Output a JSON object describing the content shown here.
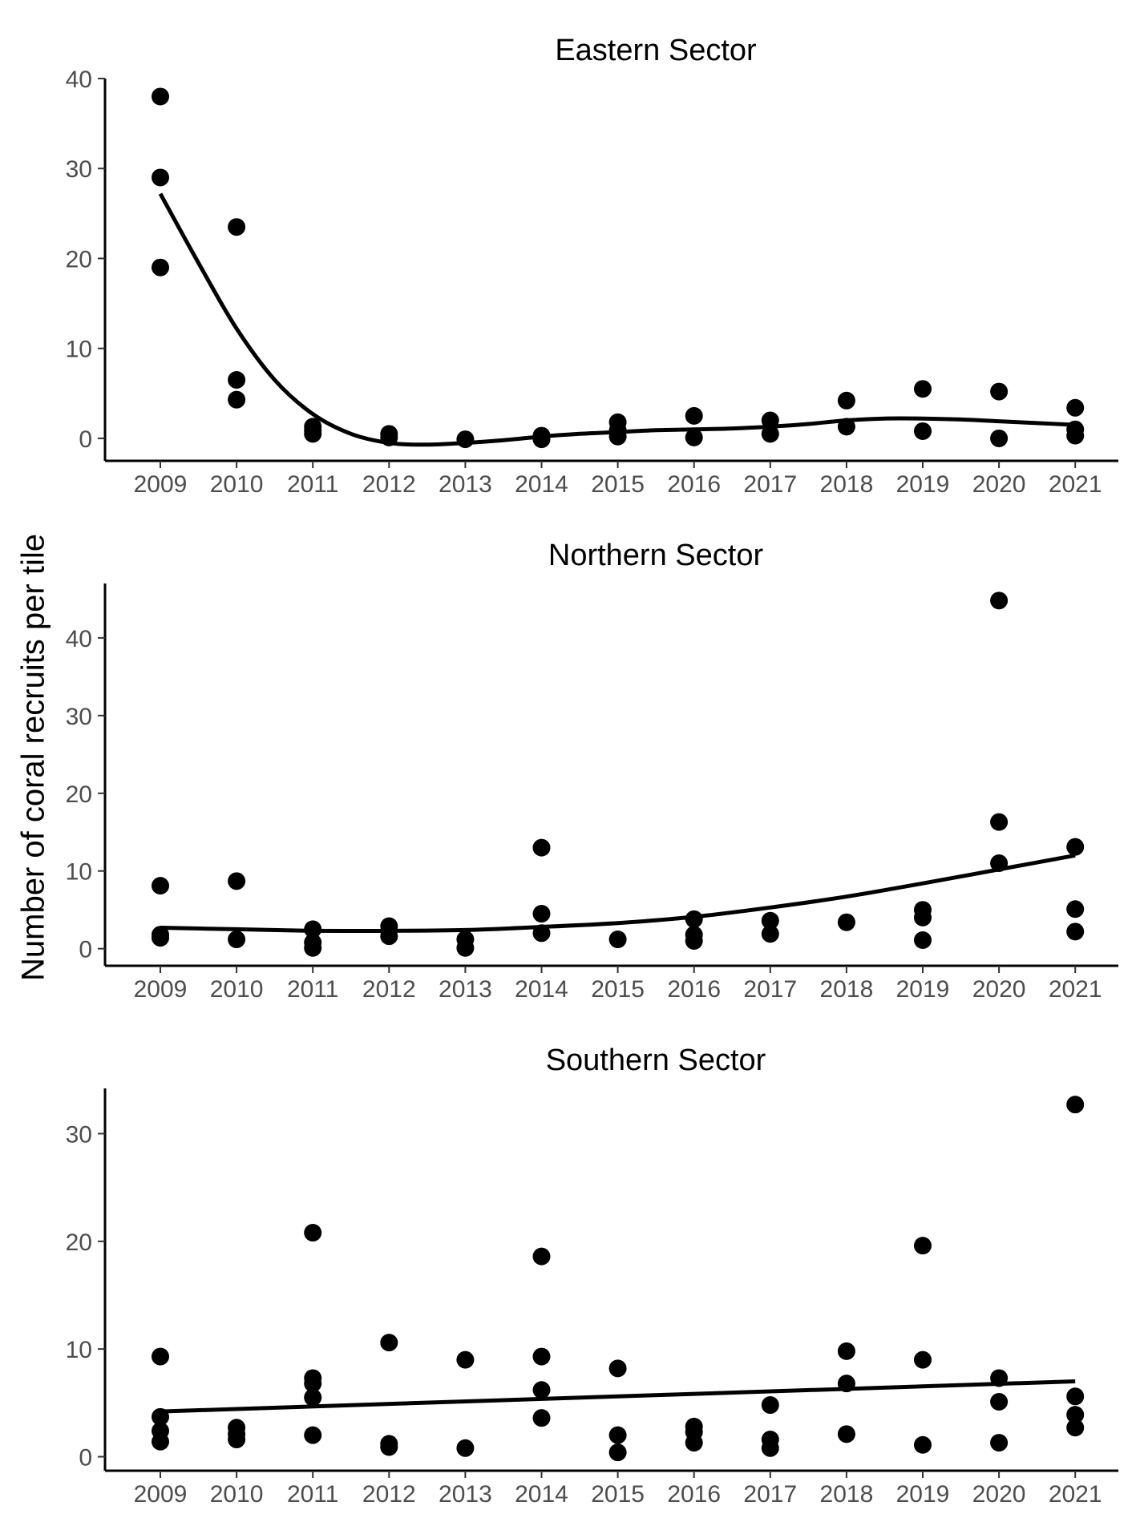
{
  "figure": {
    "ylabel": "Number of coral recruits per tile"
  },
  "chart_data": [
    {
      "type": "scatter",
      "title": "Eastern Sector",
      "xlabel": "",
      "ylabel": "Number of coral recruits per tile",
      "x_ticks": [
        2009,
        2010,
        2011,
        2012,
        2013,
        2014,
        2015,
        2016,
        2017,
        2018,
        2019,
        2020,
        2021
      ],
      "y_ticks": [
        0,
        10,
        20,
        30,
        40
      ],
      "ylim": [
        -2.5,
        40
      ],
      "grid": false,
      "points": [
        [
          2009,
          38
        ],
        [
          2009,
          29
        ],
        [
          2009,
          19
        ],
        [
          2010,
          23.5
        ],
        [
          2010,
          6.5
        ],
        [
          2010,
          4.3
        ],
        [
          2011,
          1.3
        ],
        [
          2011,
          0.5
        ],
        [
          2011,
          0.9
        ],
        [
          2012,
          0.5
        ],
        [
          2012,
          0.1
        ],
        [
          2013,
          -0.1
        ],
        [
          2014,
          0.3
        ],
        [
          2014,
          -0.1
        ],
        [
          2015,
          1.8
        ],
        [
          2015,
          0.9
        ],
        [
          2015,
          0.2
        ],
        [
          2016,
          2.5
        ],
        [
          2016,
          0.1
        ],
        [
          2017,
          2.0
        ],
        [
          2017,
          0.5
        ],
        [
          2018,
          4.2
        ],
        [
          2018,
          1.3
        ],
        [
          2019,
          5.5
        ],
        [
          2019,
          0.8
        ],
        [
          2020,
          5.2
        ],
        [
          2020,
          0.0
        ],
        [
          2021,
          3.4
        ],
        [
          2021,
          1.0
        ],
        [
          2021,
          0.3
        ]
      ],
      "trend": [
        [
          2009,
          27.2
        ],
        [
          2009.5,
          19.5
        ],
        [
          2010,
          12.2
        ],
        [
          2010.5,
          6.5
        ],
        [
          2011,
          2.7
        ],
        [
          2011.5,
          0.5
        ],
        [
          2012,
          -0.5
        ],
        [
          2012.5,
          -0.7
        ],
        [
          2013,
          -0.5
        ],
        [
          2013.5,
          -0.2
        ],
        [
          2014,
          0.2
        ],
        [
          2014.5,
          0.5
        ],
        [
          2015,
          0.7
        ],
        [
          2015.5,
          0.9
        ],
        [
          2016,
          1.0
        ],
        [
          2016.5,
          1.1
        ],
        [
          2017,
          1.3
        ],
        [
          2017.5,
          1.6
        ],
        [
          2018,
          2.0
        ],
        [
          2018.5,
          2.2
        ],
        [
          2019,
          2.2
        ],
        [
          2019.5,
          2.1
        ],
        [
          2020,
          1.9
        ],
        [
          2020.5,
          1.7
        ],
        [
          2021,
          1.5
        ]
      ]
    },
    {
      "type": "scatter",
      "title": "Northern Sector",
      "xlabel": "",
      "ylabel": "Number of coral recruits per tile",
      "x_ticks": [
        2009,
        2010,
        2011,
        2012,
        2013,
        2014,
        2015,
        2016,
        2017,
        2018,
        2019,
        2020,
        2021
      ],
      "y_ticks": [
        0,
        10,
        20,
        30,
        40
      ],
      "ylim": [
        -2.2,
        47
      ],
      "grid": false,
      "points": [
        [
          2009,
          8.1
        ],
        [
          2009,
          1.8
        ],
        [
          2009,
          1.4
        ],
        [
          2010,
          8.7
        ],
        [
          2010,
          1.2
        ],
        [
          2011,
          2.5
        ],
        [
          2011,
          0.8
        ],
        [
          2011,
          0.1
        ],
        [
          2012,
          2.9
        ],
        [
          2012,
          1.6
        ],
        [
          2013,
          1.2
        ],
        [
          2013,
          0.1
        ],
        [
          2014,
          13.0
        ],
        [
          2014,
          4.5
        ],
        [
          2014,
          2.0
        ],
        [
          2015,
          1.2
        ],
        [
          2016,
          3.8
        ],
        [
          2016,
          1.8
        ],
        [
          2016,
          1.0
        ],
        [
          2017,
          3.6
        ],
        [
          2017,
          1.9
        ],
        [
          2018,
          3.4
        ],
        [
          2019,
          5.0
        ],
        [
          2019,
          4.0
        ],
        [
          2019,
          1.1
        ],
        [
          2020,
          44.8
        ],
        [
          2020,
          16.3
        ],
        [
          2020,
          11.0
        ],
        [
          2021,
          13.1
        ],
        [
          2021,
          5.1
        ],
        [
          2021,
          2.2
        ]
      ],
      "trend": [
        [
          2009,
          2.7
        ],
        [
          2010,
          2.5
        ],
        [
          2011,
          2.3
        ],
        [
          2012,
          2.3
        ],
        [
          2013,
          2.4
        ],
        [
          2014,
          2.8
        ],
        [
          2015,
          3.3
        ],
        [
          2016,
          4.1
        ],
        [
          2017,
          5.3
        ],
        [
          2018,
          6.7
        ],
        [
          2019,
          8.4
        ],
        [
          2020,
          10.2
        ],
        [
          2021,
          12.0
        ]
      ]
    },
    {
      "type": "scatter",
      "title": "Southern Sector",
      "xlabel": "",
      "ylabel": "Number of coral recruits per tile",
      "x_ticks": [
        2009,
        2010,
        2011,
        2012,
        2013,
        2014,
        2015,
        2016,
        2017,
        2018,
        2019,
        2020,
        2021
      ],
      "y_ticks": [
        0,
        10,
        20,
        30
      ],
      "ylim": [
        -1.3,
        34.2
      ],
      "grid": false,
      "points": [
        [
          2009,
          9.3
        ],
        [
          2009,
          3.7
        ],
        [
          2009,
          2.4
        ],
        [
          2009,
          1.4
        ],
        [
          2010,
          2.7
        ],
        [
          2010,
          2.1
        ],
        [
          2010,
          1.6
        ],
        [
          2011,
          20.8
        ],
        [
          2011,
          7.3
        ],
        [
          2011,
          6.8
        ],
        [
          2011,
          5.5
        ],
        [
          2011,
          2.0
        ],
        [
          2012,
          10.6
        ],
        [
          2012,
          1.2
        ],
        [
          2012,
          0.9
        ],
        [
          2013,
          9.0
        ],
        [
          2013,
          0.8
        ],
        [
          2014,
          18.6
        ],
        [
          2014,
          9.3
        ],
        [
          2014,
          6.2
        ],
        [
          2014,
          3.6
        ],
        [
          2015,
          8.2
        ],
        [
          2015,
          2.0
        ],
        [
          2015,
          0.4
        ],
        [
          2016,
          2.8
        ],
        [
          2016,
          2.3
        ],
        [
          2016,
          1.3
        ],
        [
          2017,
          4.8
        ],
        [
          2017,
          1.6
        ],
        [
          2017,
          0.8
        ],
        [
          2018,
          9.8
        ],
        [
          2018,
          6.8
        ],
        [
          2018,
          2.1
        ],
        [
          2019,
          19.6
        ],
        [
          2019,
          9.0
        ],
        [
          2019,
          1.1
        ],
        [
          2020,
          7.3
        ],
        [
          2020,
          5.1
        ],
        [
          2020,
          1.3
        ],
        [
          2021,
          32.7
        ],
        [
          2021,
          5.6
        ],
        [
          2021,
          3.9
        ],
        [
          2021,
          2.7
        ]
      ],
      "trend": [
        [
          2009,
          4.2
        ],
        [
          2021,
          7.0
        ]
      ]
    }
  ]
}
